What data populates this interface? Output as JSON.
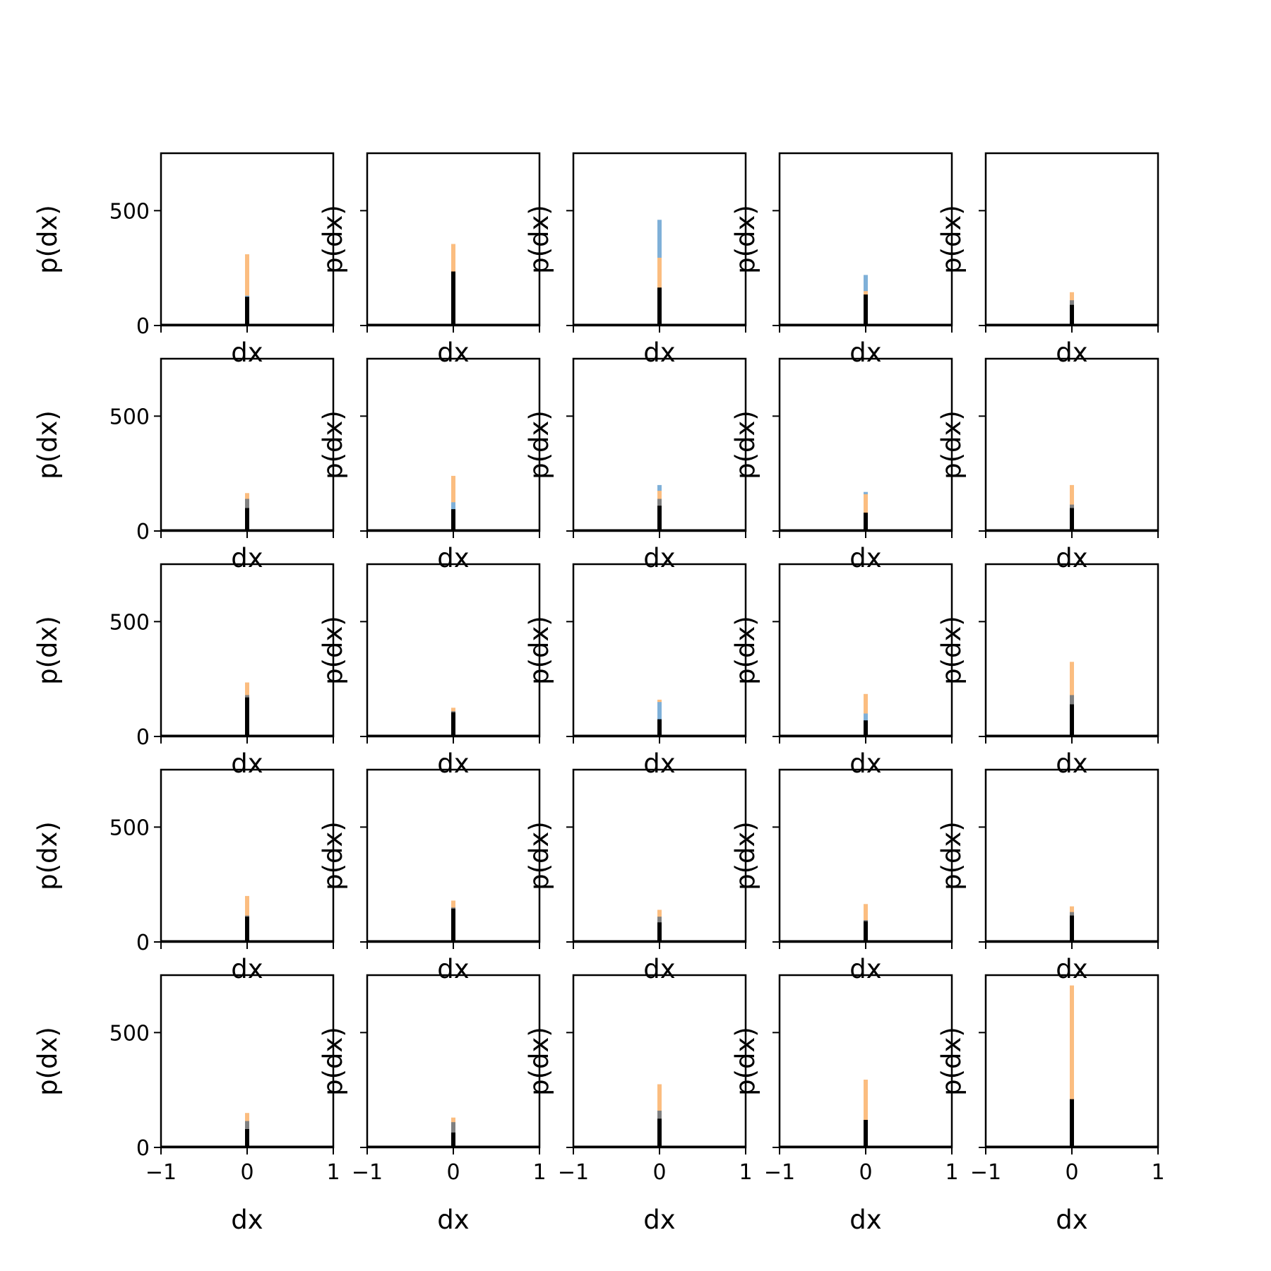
{
  "figure": {
    "rows": 5,
    "cols": 5
  },
  "colors": {
    "blue": "#7fb0d8",
    "orange": "#fbbd80",
    "black": "#000000",
    "gray": "#808080"
  },
  "chart_data": [
    {
      "type": "bar",
      "xlabel": "dx",
      "ylabel": "p(dx)",
      "xlim": [
        -1,
        1
      ],
      "ylim": [
        0,
        750
      ],
      "xticks": [
        "−1",
        "0",
        "1"
      ],
      "yticks": [
        "0",
        "500"
      ],
      "bars": [
        {
          "color": "orange",
          "x": 0,
          "value": 310
        },
        {
          "color": "blue",
          "x": 0,
          "value": 130
        },
        {
          "color": "gray",
          "x": 0,
          "value": 80
        },
        {
          "color": "black",
          "x": 0,
          "value": 125
        }
      ]
    },
    {
      "type": "bar",
      "xlabel": "dx",
      "ylabel": "p(dx)",
      "xlim": [
        -1,
        1
      ],
      "ylim": [
        0,
        750
      ],
      "xticks": [
        "−1",
        "0",
        "1"
      ],
      "yticks": [
        "0",
        "500"
      ],
      "bars": [
        {
          "color": "orange",
          "x": 0,
          "value": 355
        },
        {
          "color": "blue",
          "x": 0,
          "value": 230
        },
        {
          "color": "black",
          "x": 0,
          "value": 235
        }
      ]
    },
    {
      "type": "bar",
      "xlabel": "dx",
      "ylabel": "p(dx)",
      "xlim": [
        -1,
        1
      ],
      "ylim": [
        0,
        750
      ],
      "xticks": [
        "−1",
        "0",
        "1"
      ],
      "yticks": [
        "0",
        "500"
      ],
      "bars": [
        {
          "color": "blue",
          "x": 0,
          "value": 460
        },
        {
          "color": "orange",
          "x": 0,
          "value": 295
        },
        {
          "color": "gray",
          "x": 0,
          "value": 165
        },
        {
          "color": "black",
          "x": 0,
          "value": 165
        }
      ]
    },
    {
      "type": "bar",
      "xlabel": "dx",
      "ylabel": "p(dx)",
      "xlim": [
        -1,
        1
      ],
      "ylim": [
        0,
        750
      ],
      "xticks": [
        "−1",
        "0",
        "1"
      ],
      "yticks": [
        "0",
        "500"
      ],
      "bars": [
        {
          "color": "blue",
          "x": 0,
          "value": 220
        },
        {
          "color": "orange",
          "x": 0,
          "value": 150
        },
        {
          "color": "gray",
          "x": 0,
          "value": 130
        },
        {
          "color": "black",
          "x": 0,
          "value": 135
        }
      ]
    },
    {
      "type": "bar",
      "xlabel": "dx",
      "ylabel": "p(dx)",
      "xlim": [
        -1,
        1
      ],
      "ylim": [
        0,
        750
      ],
      "xticks": [
        "−1",
        "0",
        "1"
      ],
      "yticks": [
        "0",
        "500"
      ],
      "bars": [
        {
          "color": "orange",
          "x": 0,
          "value": 145
        },
        {
          "color": "gray",
          "x": 0,
          "value": 110
        },
        {
          "color": "black",
          "x": 0,
          "value": 90
        }
      ]
    },
    {
      "type": "bar",
      "xlabel": "dx",
      "ylabel": "p(dx)",
      "xlim": [
        -1,
        1
      ],
      "ylim": [
        0,
        750
      ],
      "xticks": [
        "−1",
        "0",
        "1"
      ],
      "yticks": [
        "0",
        "500"
      ],
      "bars": [
        {
          "color": "orange",
          "x": 0,
          "value": 165
        },
        {
          "color": "gray",
          "x": 0,
          "value": 140
        },
        {
          "color": "black",
          "x": 0,
          "value": 100
        }
      ]
    },
    {
      "type": "bar",
      "xlabel": "dx",
      "ylabel": "p(dx)",
      "xlim": [
        -1,
        1
      ],
      "ylim": [
        0,
        750
      ],
      "xticks": [
        "−1",
        "0",
        "1"
      ],
      "yticks": [
        "0",
        "500"
      ],
      "bars": [
        {
          "color": "orange",
          "x": 0,
          "value": 240
        },
        {
          "color": "blue",
          "x": 0,
          "value": 125
        },
        {
          "color": "black",
          "x": 0,
          "value": 95
        }
      ]
    },
    {
      "type": "bar",
      "xlabel": "dx",
      "ylabel": "p(dx)",
      "xlim": [
        -1,
        1
      ],
      "ylim": [
        0,
        750
      ],
      "xticks": [
        "−1",
        "0",
        "1"
      ],
      "yticks": [
        "0",
        "500"
      ],
      "bars": [
        {
          "color": "blue",
          "x": 0,
          "value": 200
        },
        {
          "color": "orange",
          "x": 0,
          "value": 175
        },
        {
          "color": "gray",
          "x": 0,
          "value": 140
        },
        {
          "color": "black",
          "x": 0,
          "value": 110
        }
      ]
    },
    {
      "type": "bar",
      "xlabel": "dx",
      "ylabel": "p(dx)",
      "xlim": [
        -1,
        1
      ],
      "ylim": [
        0,
        750
      ],
      "xticks": [
        "−1",
        "0",
        "1"
      ],
      "yticks": [
        "0",
        "500"
      ],
      "bars": [
        {
          "color": "blue",
          "x": 0,
          "value": 170
        },
        {
          "color": "orange",
          "x": 0,
          "value": 160
        },
        {
          "color": "black",
          "x": 0,
          "value": 80
        }
      ]
    },
    {
      "type": "bar",
      "xlabel": "dx",
      "ylabel": "p(dx)",
      "xlim": [
        -1,
        1
      ],
      "ylim": [
        0,
        750
      ],
      "xticks": [
        "−1",
        "0",
        "1"
      ],
      "yticks": [
        "0",
        "500"
      ],
      "bars": [
        {
          "color": "orange",
          "x": 0,
          "value": 200
        },
        {
          "color": "gray",
          "x": 0,
          "value": 115
        },
        {
          "color": "black",
          "x": 0,
          "value": 100
        }
      ]
    },
    {
      "type": "bar",
      "xlabel": "dx",
      "ylabel": "p(dx)",
      "xlim": [
        -1,
        1
      ],
      "ylim": [
        0,
        750
      ],
      "xticks": [
        "−1",
        "0",
        "1"
      ],
      "yticks": [
        "0",
        "500"
      ],
      "bars": [
        {
          "color": "orange",
          "x": 0,
          "value": 235
        },
        {
          "color": "gray",
          "x": 0,
          "value": 180
        },
        {
          "color": "black",
          "x": 0,
          "value": 170
        }
      ]
    },
    {
      "type": "bar",
      "xlabel": "dx",
      "ylabel": "p(dx)",
      "xlim": [
        -1,
        1
      ],
      "ylim": [
        0,
        750
      ],
      "xticks": [
        "−1",
        "0",
        "1"
      ],
      "yticks": [
        "0",
        "500"
      ],
      "bars": [
        {
          "color": "orange",
          "x": 0,
          "value": 125
        },
        {
          "color": "gray",
          "x": 0,
          "value": 110
        },
        {
          "color": "black",
          "x": 0,
          "value": 105
        }
      ]
    },
    {
      "type": "bar",
      "xlabel": "dx",
      "ylabel": "p(dx)",
      "xlim": [
        -1,
        1
      ],
      "ylim": [
        0,
        750
      ],
      "xticks": [
        "−1",
        "0",
        "1"
      ],
      "yticks": [
        "0",
        "500"
      ],
      "bars": [
        {
          "color": "orange",
          "x": 0,
          "value": 160
        },
        {
          "color": "blue",
          "x": 0,
          "value": 150
        },
        {
          "color": "black",
          "x": 0,
          "value": 75
        }
      ]
    },
    {
      "type": "bar",
      "xlabel": "dx",
      "ylabel": "p(dx)",
      "xlim": [
        -1,
        1
      ],
      "ylim": [
        0,
        750
      ],
      "xticks": [
        "−1",
        "0",
        "1"
      ],
      "yticks": [
        "0",
        "500"
      ],
      "bars": [
        {
          "color": "orange",
          "x": 0,
          "value": 185
        },
        {
          "color": "blue",
          "x": 0,
          "value": 100
        },
        {
          "color": "black",
          "x": 0,
          "value": 70
        }
      ]
    },
    {
      "type": "bar",
      "xlabel": "dx",
      "ylabel": "p(dx)",
      "xlim": [
        -1,
        1
      ],
      "ylim": [
        0,
        750
      ],
      "xticks": [
        "−1",
        "0",
        "1"
      ],
      "yticks": [
        "0",
        "500"
      ],
      "bars": [
        {
          "color": "orange",
          "x": 0,
          "value": 325
        },
        {
          "color": "gray",
          "x": 0,
          "value": 180
        },
        {
          "color": "black",
          "x": 0,
          "value": 140
        }
      ]
    },
    {
      "type": "bar",
      "xlabel": "dx",
      "ylabel": "p(dx)",
      "xlim": [
        -1,
        1
      ],
      "ylim": [
        0,
        750
      ],
      "xticks": [
        "−1",
        "0",
        "1"
      ],
      "yticks": [
        "0",
        "500"
      ],
      "bars": [
        {
          "color": "orange",
          "x": 0,
          "value": 200
        },
        {
          "color": "gray",
          "x": 0,
          "value": 115
        },
        {
          "color": "black",
          "x": 0,
          "value": 110
        }
      ]
    },
    {
      "type": "bar",
      "xlabel": "dx",
      "ylabel": "p(dx)",
      "xlim": [
        -1,
        1
      ],
      "ylim": [
        0,
        750
      ],
      "xticks": [
        "−1",
        "0",
        "1"
      ],
      "yticks": [
        "0",
        "500"
      ],
      "bars": [
        {
          "color": "orange",
          "x": 0,
          "value": 180
        },
        {
          "color": "gray",
          "x": 0,
          "value": 150
        },
        {
          "color": "black",
          "x": 0,
          "value": 145
        }
      ]
    },
    {
      "type": "bar",
      "xlabel": "dx",
      "ylabel": "p(dx)",
      "xlim": [
        -1,
        1
      ],
      "ylim": [
        0,
        750
      ],
      "xticks": [
        "−1",
        "0",
        "1"
      ],
      "yticks": [
        "0",
        "500"
      ],
      "bars": [
        {
          "color": "orange",
          "x": 0,
          "value": 140
        },
        {
          "color": "gray",
          "x": 0,
          "value": 110
        },
        {
          "color": "black",
          "x": 0,
          "value": 85
        }
      ]
    },
    {
      "type": "bar",
      "xlabel": "dx",
      "ylabel": "p(dx)",
      "xlim": [
        -1,
        1
      ],
      "ylim": [
        0,
        750
      ],
      "xticks": [
        "−1",
        "0",
        "1"
      ],
      "yticks": [
        "0",
        "500"
      ],
      "bars": [
        {
          "color": "orange",
          "x": 0,
          "value": 165
        },
        {
          "color": "gray",
          "x": 0,
          "value": 95
        },
        {
          "color": "black",
          "x": 0,
          "value": 90
        }
      ]
    },
    {
      "type": "bar",
      "xlabel": "dx",
      "ylabel": "p(dx)",
      "xlim": [
        -1,
        1
      ],
      "ylim": [
        0,
        750
      ],
      "xticks": [
        "−1",
        "0",
        "1"
      ],
      "yticks": [
        "0",
        "500"
      ],
      "bars": [
        {
          "color": "orange",
          "x": 0,
          "value": 155
        },
        {
          "color": "gray",
          "x": 0,
          "value": 130
        },
        {
          "color": "black",
          "x": 0,
          "value": 115
        }
      ]
    },
    {
      "type": "bar",
      "xlabel": "dx",
      "ylabel": "p(dx)",
      "xlim": [
        -1,
        1
      ],
      "ylim": [
        0,
        750
      ],
      "xticks": [
        "−1",
        "0",
        "1"
      ],
      "yticks": [
        "0",
        "500"
      ],
      "bars": [
        {
          "color": "orange",
          "x": 0,
          "value": 150
        },
        {
          "color": "gray",
          "x": 0,
          "value": 115
        },
        {
          "color": "black",
          "x": 0,
          "value": 80
        }
      ]
    },
    {
      "type": "bar",
      "xlabel": "dx",
      "ylabel": "p(dx)",
      "xlim": [
        -1,
        1
      ],
      "ylim": [
        0,
        750
      ],
      "xticks": [
        "−1",
        "0",
        "1"
      ],
      "yticks": [
        "0",
        "500"
      ],
      "bars": [
        {
          "color": "orange",
          "x": 0,
          "value": 130
        },
        {
          "color": "gray",
          "x": 0,
          "value": 110
        },
        {
          "color": "black",
          "x": 0,
          "value": 65
        }
      ]
    },
    {
      "type": "bar",
      "xlabel": "dx",
      "ylabel": "p(dx)",
      "xlim": [
        -1,
        1
      ],
      "ylim": [
        0,
        750
      ],
      "xticks": [
        "−1",
        "0",
        "1"
      ],
      "yticks": [
        "0",
        "500"
      ],
      "bars": [
        {
          "color": "orange",
          "x": 0,
          "value": 275
        },
        {
          "color": "gray",
          "x": 0,
          "value": 160
        },
        {
          "color": "black",
          "x": 0,
          "value": 125
        }
      ]
    },
    {
      "type": "bar",
      "xlabel": "dx",
      "ylabel": "p(dx)",
      "xlim": [
        -1,
        1
      ],
      "ylim": [
        0,
        750
      ],
      "xticks": [
        "−1",
        "0",
        "1"
      ],
      "yticks": [
        "0",
        "500"
      ],
      "bars": [
        {
          "color": "orange",
          "x": 0,
          "value": 295
        },
        {
          "color": "gray",
          "x": 0,
          "value": 120
        },
        {
          "color": "black",
          "x": 0,
          "value": 120
        }
      ]
    },
    {
      "type": "bar",
      "xlabel": "dx",
      "ylabel": "p(dx)",
      "xlim": [
        -1,
        1
      ],
      "ylim": [
        0,
        750
      ],
      "xticks": [
        "−1",
        "0",
        "1"
      ],
      "yticks": [
        "0",
        "500"
      ],
      "bars": [
        {
          "color": "orange",
          "x": 0,
          "value": 705
        },
        {
          "color": "gray",
          "x": 0,
          "value": 210
        },
        {
          "color": "black",
          "x": 0,
          "value": 210
        }
      ]
    }
  ]
}
